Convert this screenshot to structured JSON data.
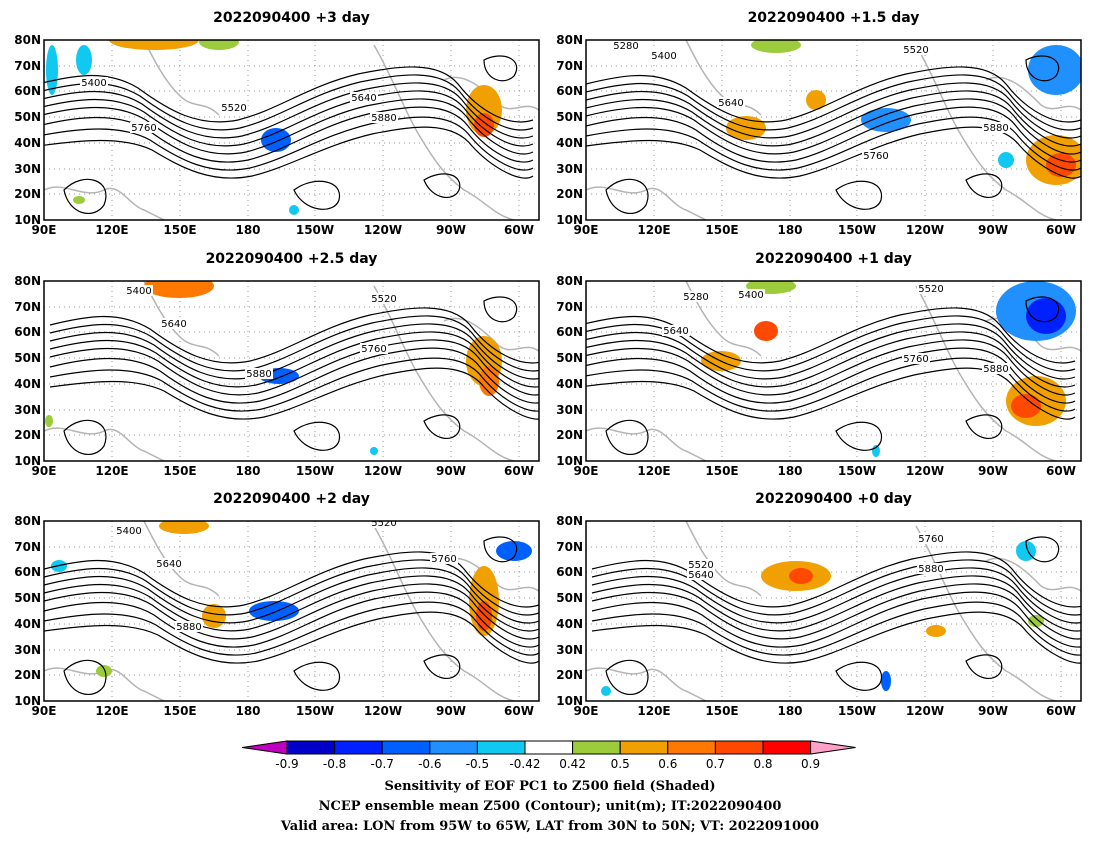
{
  "panels": [
    {
      "title": "2022090400 +3 day",
      "contour_labels": [
        "5400",
        "5520",
        "5640",
        "5760",
        "5880"
      ]
    },
    {
      "title": "2022090400 +1.5 day",
      "contour_labels": [
        "5280",
        "5400",
        "5520",
        "5640",
        "5760",
        "5880"
      ]
    },
    {
      "title": "2022090400 +2.5 day",
      "contour_labels": [
        "5400",
        "5520",
        "5640",
        "5760",
        "5880"
      ]
    },
    {
      "title": "2022090400 +1 day",
      "contour_labels": [
        "5280",
        "5400",
        "5520",
        "5640",
        "5760",
        "5880"
      ]
    },
    {
      "title": "2022090400 +2 day",
      "contour_labels": [
        "5400",
        "5520",
        "5640",
        "5760",
        "5880"
      ]
    },
    {
      "title": "2022090400 +0 day",
      "contour_labels": [
        "5520",
        "5640",
        "5760",
        "5880"
      ]
    }
  ],
  "lat_ticks": [
    "10N",
    "20N",
    "30N",
    "40N",
    "50N",
    "60N",
    "70N",
    "80N"
  ],
  "lon_ticks": [
    "90E",
    "120E",
    "150E",
    "180",
    "150W",
    "120W",
    "90W",
    "60W"
  ],
  "colorbar": {
    "colors": [
      "#c000c0",
      "#0000c8",
      "#0020ff",
      "#0060ff",
      "#2090ff",
      "#10c8f0",
      "#ffffff",
      "#9ccc3c",
      "#f0a000",
      "#ff7800",
      "#ff4800",
      "#ff0000",
      "#ffa0c8"
    ],
    "labels": [
      "-0.9",
      "-0.8",
      "-0.7",
      "-0.6",
      "-0.5",
      "-0.42",
      "0.42",
      "0.5",
      "0.6",
      "0.7",
      "0.8",
      "0.9"
    ]
  },
  "captions": [
    "Sensitivity of EOF PC1 to Z500 field (Shaded)",
    "NCEP ensemble mean Z500 (Contour); unit(m); IT:2022090400",
    "Valid area: LON from 95W to 65W, LAT from 30N to 50N; VT: 2022091000"
  ]
}
